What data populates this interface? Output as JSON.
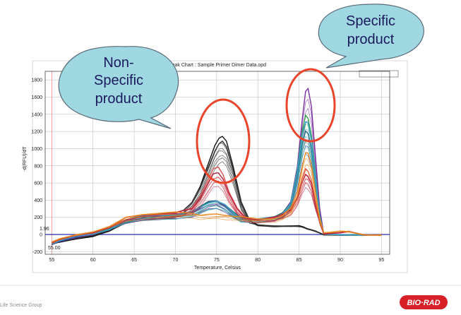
{
  "chart_data": {
    "type": "line",
    "title": "Peak Chart : Sample Primer Dimer Data.opd",
    "xlabel": "Temperature, Celsius",
    "ylabel": "-d(RFU)/dT",
    "xlim": [
      54.2,
      96
    ],
    "ylim": [
      -230,
      1900
    ],
    "xticks": [
      55,
      60,
      65,
      70,
      75,
      80,
      85,
      90,
      95
    ],
    "yticks": [
      -200,
      0,
      200,
      400,
      600,
      800,
      1000,
      1200,
      1400,
      1600,
      1800
    ],
    "grid": true,
    "threshold": 0,
    "marker_labels": [
      "1.96",
      "55.00"
    ],
    "series": [
      {
        "group": "nonspecific",
        "color": "#111111",
        "x": [
          55,
          56,
          58,
          60,
          62,
          64,
          66,
          68,
          70,
          71,
          72,
          73,
          74,
          74.8,
          75.3,
          75.7,
          76.2,
          77,
          78,
          79,
          80,
          82,
          84,
          85,
          85.5,
          86,
          87,
          88,
          90,
          93,
          95
        ],
        "values": [
          -110,
          -90,
          -50,
          -20,
          40,
          160,
          215,
          225,
          240,
          280,
          380,
          560,
          820,
          1040,
          1130,
          1140,
          1080,
          800,
          380,
          160,
          110,
          100,
          100,
          98,
          90,
          70,
          40,
          -5,
          -5,
          -5,
          -5
        ]
      },
      {
        "group": "nonspecific",
        "color": "#333333",
        "x": [
          55,
          56,
          58,
          60,
          62,
          64,
          66,
          68,
          70,
          71,
          72,
          73,
          74,
          74.8,
          75.3,
          75.7,
          76.2,
          77,
          78,
          79,
          80,
          82,
          84,
          85,
          85.5,
          86,
          87,
          88,
          90,
          93,
          95
        ],
        "values": [
          -100,
          -80,
          -40,
          -10,
          50,
          170,
          220,
          230,
          245,
          285,
          380,
          540,
          780,
          980,
          1060,
          1080,
          1020,
          760,
          360,
          150,
          105,
          95,
          95,
          92,
          85,
          65,
          35,
          -5,
          -5,
          -5,
          -5
        ]
      },
      {
        "group": "specific",
        "color": "#7b2fa0",
        "x": [
          55,
          56,
          58,
          60,
          62,
          64,
          66,
          68,
          70,
          72,
          73,
          74,
          75,
          76,
          77,
          78,
          80,
          82,
          83,
          84,
          84.8,
          85.4,
          85.8,
          86.1,
          86.5,
          87,
          87.5,
          88,
          90,
          93,
          95
        ],
        "values": [
          -120,
          -80,
          -30,
          0,
          60,
          170,
          220,
          230,
          235,
          260,
          310,
          370,
          390,
          340,
          250,
          190,
          180,
          200,
          240,
          380,
          800,
          1350,
          1660,
          1700,
          1500,
          900,
          300,
          10,
          -5,
          -5,
          -5
        ]
      },
      {
        "group": "specific",
        "color": "#1b3fa0",
        "x": [
          55,
          56,
          58,
          60,
          62,
          64,
          66,
          68,
          70,
          72,
          73,
          74,
          75,
          76,
          77,
          78,
          80,
          82,
          83,
          84,
          84.8,
          85.4,
          85.8,
          86.1,
          86.5,
          87,
          87.5,
          88,
          90,
          93,
          95
        ],
        "values": [
          -115,
          -75,
          -25,
          10,
          70,
          180,
          225,
          235,
          240,
          270,
          320,
          380,
          400,
          350,
          260,
          195,
          185,
          205,
          245,
          370,
          700,
          1050,
          1200,
          1180,
          1000,
          650,
          220,
          5,
          -5,
          -5,
          -5
        ]
      },
      {
        "group": "specific",
        "color": "#2ea04a",
        "x": [
          55,
          56,
          58,
          60,
          62,
          64,
          66,
          68,
          70,
          72,
          73,
          74,
          75,
          76,
          77,
          78,
          80,
          82,
          83,
          84,
          84.8,
          85.4,
          85.8,
          86.1,
          86.5,
          87,
          87.5,
          88,
          90,
          93,
          95
        ],
        "values": [
          -110,
          -70,
          -20,
          5,
          65,
          175,
          220,
          232,
          238,
          265,
          315,
          375,
          395,
          345,
          255,
          192,
          182,
          202,
          242,
          375,
          760,
          1200,
          1390,
          1360,
          1150,
          700,
          240,
          5,
          -5,
          -5,
          -5
        ]
      },
      {
        "group": "specific",
        "color": "#3aa0c8",
        "x": [
          55,
          56,
          58,
          60,
          62,
          64,
          66,
          68,
          70,
          72,
          73,
          74,
          75,
          76,
          77,
          78,
          80,
          82,
          83,
          84,
          84.8,
          85.4,
          85.8,
          86.1,
          86.5,
          87,
          87.5,
          88,
          90,
          93,
          95
        ],
        "values": [
          -105,
          -70,
          -20,
          5,
          60,
          170,
          215,
          228,
          235,
          262,
          312,
          372,
          392,
          342,
          252,
          190,
          180,
          200,
          240,
          372,
          740,
          1160,
          1320,
          1300,
          1100,
          680,
          230,
          5,
          -5,
          -5,
          -5
        ]
      },
      {
        "group": "specific",
        "color": "#e05050",
        "x": [
          55,
          56,
          58,
          60,
          62,
          64,
          66,
          68,
          70,
          72,
          73,
          74,
          74.6,
          75.2,
          75.8,
          76.5,
          77.5,
          78.5,
          80,
          82,
          83,
          84,
          84.8,
          85.4,
          85.8,
          86.1,
          86.5,
          87,
          87.5,
          88,
          90,
          91,
          93,
          95
        ],
        "values": [
          -100,
          -60,
          -10,
          20,
          80,
          190,
          230,
          240,
          250,
          300,
          450,
          650,
          760,
          780,
          700,
          500,
          300,
          200,
          180,
          200,
          230,
          300,
          450,
          650,
          760,
          740,
          640,
          380,
          150,
          10,
          20,
          30,
          -5,
          -5
        ]
      },
      {
        "group": "specific",
        "color": "#b8223e",
        "x": [
          55,
          56,
          58,
          60,
          62,
          64,
          66,
          68,
          70,
          72,
          73,
          74,
          74.6,
          75.2,
          75.8,
          76.5,
          77.5,
          78.5,
          80,
          82,
          83,
          84,
          84.8,
          85.4,
          85.8,
          86.1,
          86.5,
          87,
          87.5,
          88,
          90,
          91,
          93,
          95
        ],
        "values": [
          -95,
          -55,
          -5,
          25,
          85,
          195,
          235,
          242,
          252,
          295,
          420,
          600,
          700,
          720,
          650,
          470,
          290,
          195,
          178,
          198,
          228,
          295,
          430,
          600,
          700,
          680,
          590,
          360,
          140,
          10,
          20,
          35,
          -5,
          -5
        ]
      },
      {
        "group": "specific",
        "color": "#e88a20",
        "x": [
          55,
          56,
          58,
          60,
          62,
          64,
          66,
          68,
          70,
          72,
          73,
          74,
          75,
          76,
          77,
          78,
          80,
          82,
          83,
          84,
          84.8,
          85.4,
          85.8,
          86.1,
          86.5,
          87,
          87.5,
          88,
          89,
          90,
          91,
          93,
          95
        ],
        "values": [
          -90,
          -50,
          0,
          30,
          90,
          200,
          240,
          245,
          255,
          250,
          230,
          230,
          235,
          230,
          215,
          200,
          180,
          190,
          220,
          300,
          500,
          800,
          950,
          940,
          820,
          500,
          180,
          20,
          30,
          40,
          30,
          -5,
          -5
        ]
      }
    ]
  },
  "callouts": {
    "nonspecific": [
      "Non-",
      "Specific",
      "product"
    ],
    "specific": [
      "Specific",
      "product"
    ]
  },
  "footer": {
    "text": "Life Science Group",
    "logo": "BIO·RAD"
  },
  "colors": {
    "callout_fill": "#9fd8e0",
    "callout_stroke": "#5a6a78",
    "circle": "#e8452a",
    "threshold": "#2b2bb0",
    "logo": "#d71f28"
  }
}
